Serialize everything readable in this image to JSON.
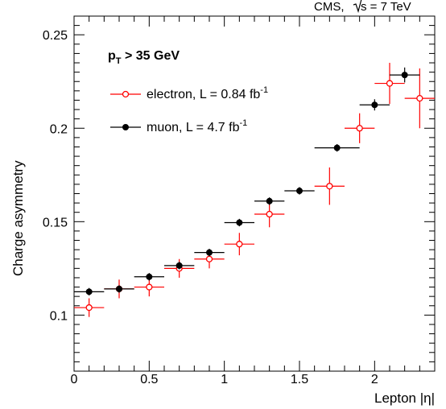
{
  "chart_data": {
    "type": "scatter",
    "experiment_label": "CMS, √s = 7 TeV",
    "experiment_prefix": "CMS, ",
    "energy_label": "s = 7 TeV",
    "cut_label": {
      "main": "p",
      "sub": "T",
      "rest": " > 35 GeV"
    },
    "xlabel": "Lepton |η|",
    "ylabel": "Charge asymmetry",
    "xlim": [
      0,
      2.4
    ],
    "ylim": [
      0.07,
      0.26
    ],
    "x_ticks": [
      0,
      0.5,
      1,
      1.5,
      2
    ],
    "x_tick_labels": [
      "0",
      "0.5",
      "1",
      "1.5",
      "2"
    ],
    "y_ticks": [
      0.1,
      0.15,
      0.2,
      0.25
    ],
    "y_tick_labels": [
      "0.1",
      "0.15",
      "0.2",
      "0.25"
    ],
    "grid": false,
    "legend_position": "top-left",
    "series": [
      {
        "name": "electron",
        "legend": {
          "text": "electron, L = 0.84 fb",
          "sup": "-1"
        },
        "color": "#ff0000",
        "marker": "open-circle",
        "points": [
          {
            "x": 0.1,
            "y": 0.104,
            "xerr": 0.1,
            "yerr": 0.005
          },
          {
            "x": 0.3,
            "y": 0.114,
            "xerr": 0.1,
            "yerr": 0.005
          },
          {
            "x": 0.5,
            "y": 0.115,
            "xerr": 0.1,
            "yerr": 0.005
          },
          {
            "x": 0.7,
            "y": 0.125,
            "xerr": 0.1,
            "yerr": 0.005
          },
          {
            "x": 0.9,
            "y": 0.13,
            "xerr": 0.1,
            "yerr": 0.005
          },
          {
            "x": 1.1,
            "y": 0.138,
            "xerr": 0.1,
            "yerr": 0.006
          },
          {
            "x": 1.3,
            "y": 0.154,
            "xerr": 0.1,
            "yerr": 0.007
          },
          {
            "x": 1.7,
            "y": 0.169,
            "xerr": 0.1,
            "yerr": 0.01
          },
          {
            "x": 1.9,
            "y": 0.2,
            "xerr": 0.1,
            "yerr": 0.008
          },
          {
            "x": 2.1,
            "y": 0.224,
            "xerr": 0.1,
            "yerr": 0.011
          },
          {
            "x": 2.3,
            "y": 0.216,
            "xerr": 0.1,
            "yerr": 0.016
          }
        ]
      },
      {
        "name": "muon",
        "legend": {
          "text": "muon, L = 4.7 fb",
          "sup": "-1"
        },
        "color": "#000000",
        "marker": "filled-circle",
        "points": [
          {
            "x": 0.1,
            "y": 0.1125,
            "xerr": 0.1,
            "yerr": 0.002
          },
          {
            "x": 0.3,
            "y": 0.114,
            "xerr": 0.1,
            "yerr": 0.002
          },
          {
            "x": 0.5,
            "y": 0.1205,
            "xerr": 0.1,
            "yerr": 0.002
          },
          {
            "x": 0.7,
            "y": 0.1265,
            "xerr": 0.1,
            "yerr": 0.002
          },
          {
            "x": 0.9,
            "y": 0.1335,
            "xerr": 0.1,
            "yerr": 0.002
          },
          {
            "x": 1.1,
            "y": 0.1495,
            "xerr": 0.1,
            "yerr": 0.002
          },
          {
            "x": 1.3,
            "y": 0.161,
            "xerr": 0.1,
            "yerr": 0.002
          },
          {
            "x": 1.5,
            "y": 0.1665,
            "xerr": 0.1,
            "yerr": 0.002
          },
          {
            "x": 1.75,
            "y": 0.1895,
            "xerr": 0.15,
            "yerr": 0.002
          },
          {
            "x": 2.0,
            "y": 0.2125,
            "xerr": 0.1,
            "yerr": 0.003
          },
          {
            "x": 2.2,
            "y": 0.2285,
            "xerr": 0.1,
            "yerr": 0.004
          }
        ]
      }
    ]
  }
}
